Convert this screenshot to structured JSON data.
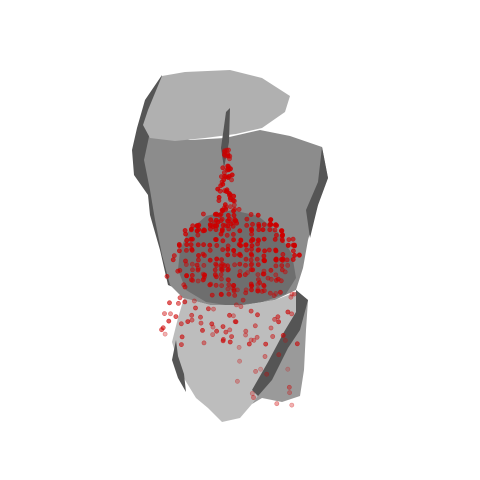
{
  "render": {
    "background_color": "#ffffff",
    "mesh_colors": {
      "top_face": "#b0b0b0",
      "main_body": "#8c8c8c",
      "shadow_dark": "#555555",
      "lower_light": "#bdbdbd",
      "lower_mid": "#9a9a9a",
      "cavity": "#6e6e6e"
    },
    "point_color": "#cc0000",
    "point_opacity_near": 0.85,
    "point_opacity_far": 0.3
  }
}
